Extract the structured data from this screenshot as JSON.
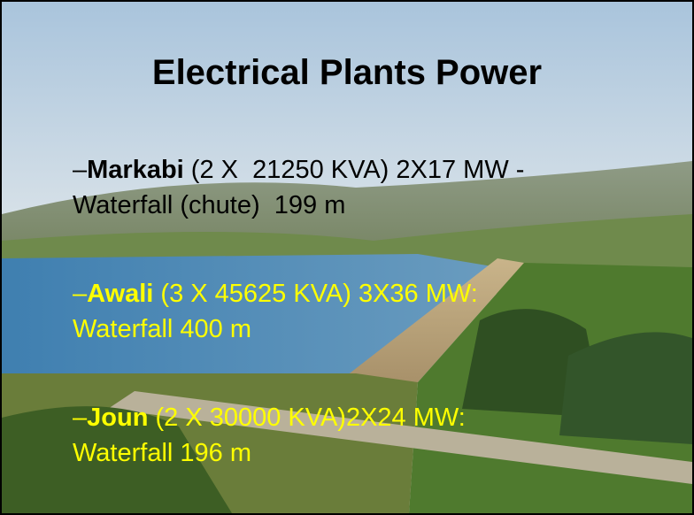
{
  "slide": {
    "title": "Electrical Plants Power",
    "bullets": [
      {
        "marker": "–",
        "name": "Markabi",
        "detail": " (2 X  21250 KVA) 2X17 MW -",
        "line2": "Waterfall (chute)  199 m"
      },
      {
        "marker": "–",
        "name": "Awali",
        "detail": " (3 X 45625 KVA) 3X36 MW:",
        "line2": "Waterfall 400 m"
      },
      {
        "marker": "–",
        "name": "Joun",
        "detail": " (2 X 30000 KVA)2X24 MW:",
        "line2": "Waterfall 196 m"
      }
    ]
  }
}
